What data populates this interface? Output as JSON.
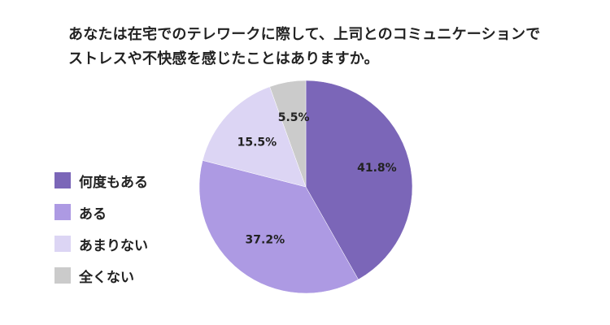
{
  "chart_data": {
    "type": "pie",
    "title_lines": [
      "あなたは在宅でのテレワークに際して、上司とのコミュニケーションで",
      "ストレスや不快感を感じたことはありますか。"
    ],
    "categories": [
      "何度もある",
      "ある",
      "あまりない",
      "全くない"
    ],
    "values": [
      41.8,
      37.2,
      15.5,
      5.5
    ],
    "data_labels": [
      "41.8%",
      "37.2%",
      "15.5%",
      "5.5%"
    ],
    "colors": [
      "#7b66b8",
      "#ad9ae3",
      "#dcd5f4",
      "#cbcbcb"
    ],
    "legend_position": "left",
    "start_angle": "top, clockwise"
  }
}
